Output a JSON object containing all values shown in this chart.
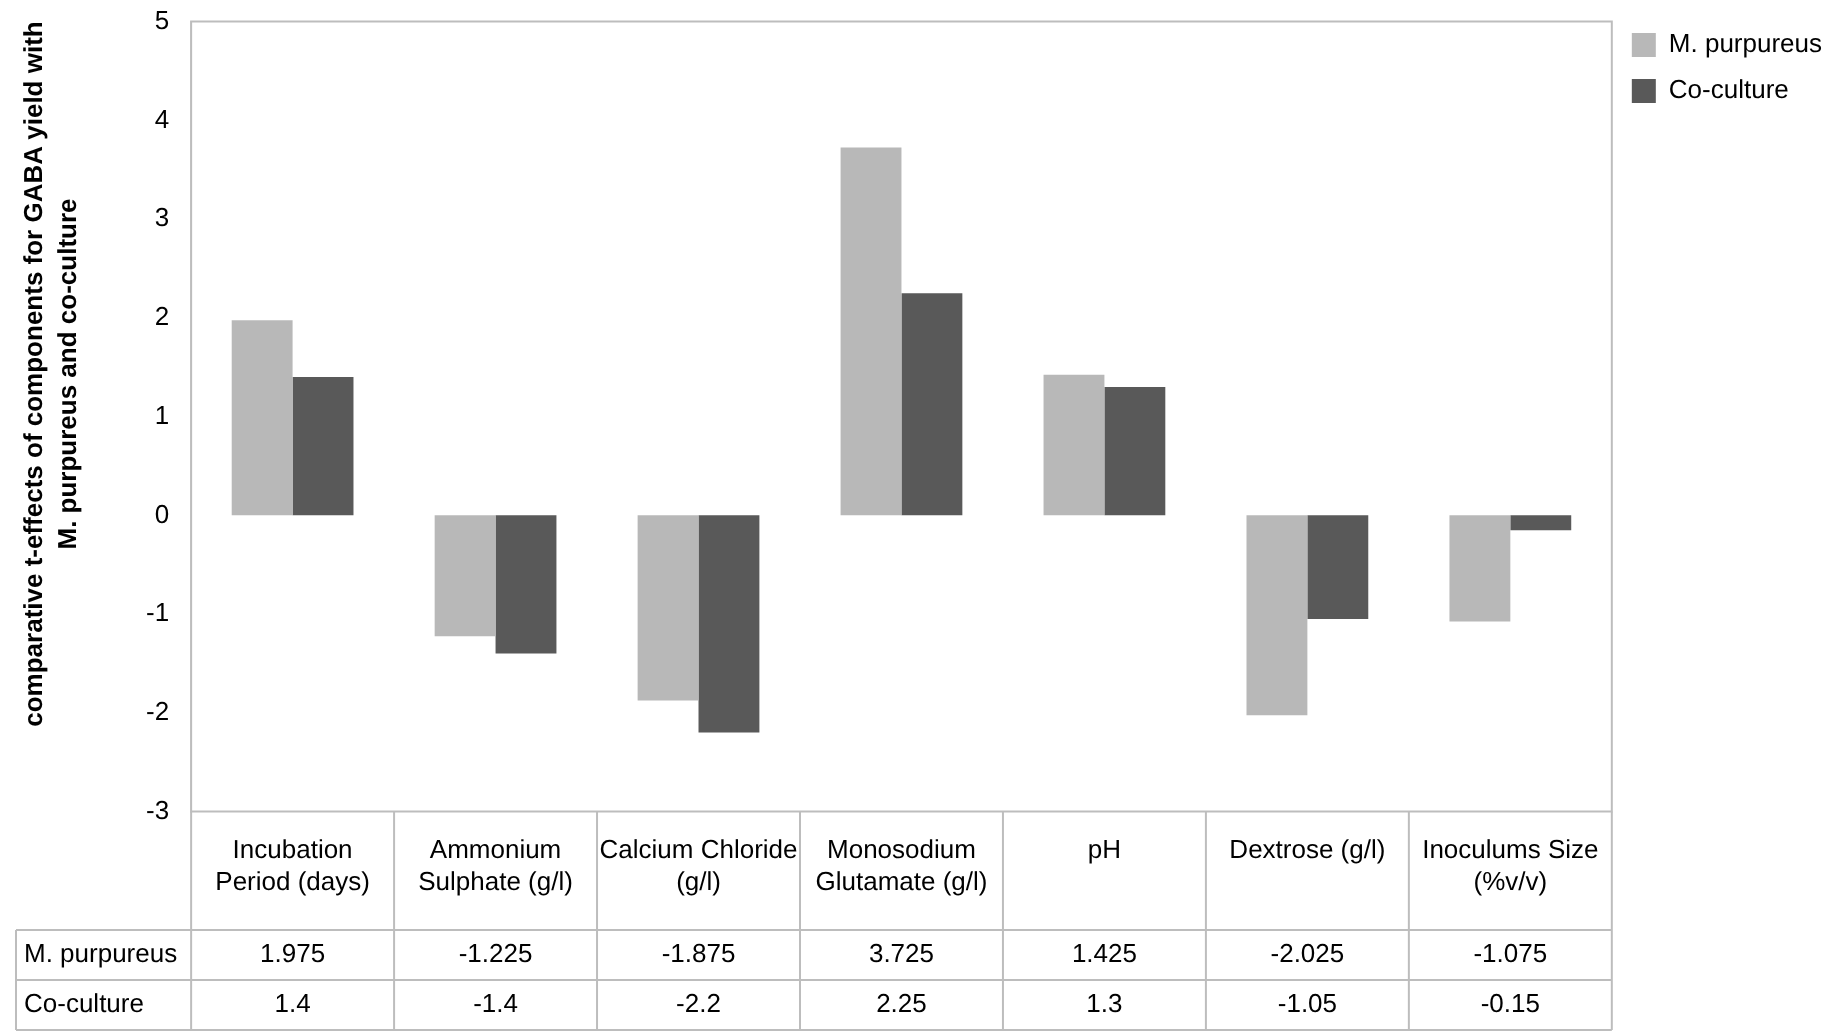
{
  "chart_data": {
    "type": "bar",
    "ylabel": "comparative t-effects of components for GABA yield with M. purpureus and co-culture",
    "categories": [
      "Incubation Period (days)",
      "Ammonium Sulphate (g/l)",
      "Calcium Chloride (g/l)",
      "Monosodium Glutamate (g/l)",
      "pH",
      "Dextrose (g/l)",
      "Inoculums Size (%v/v)"
    ],
    "series": [
      {
        "name": "M. purpureus",
        "color": "#b8b8b8",
        "values": [
          1.975,
          -1.225,
          -1.875,
          3.725,
          1.425,
          -2.025,
          -1.075
        ]
      },
      {
        "name": "Co-culture",
        "color": "#595959",
        "values": [
          1.4,
          -1.4,
          -2.2,
          2.25,
          1.3,
          -1.05,
          -0.15
        ]
      }
    ],
    "ylim": [
      -3,
      5
    ],
    "yticks": [
      -3,
      -2,
      -1,
      0,
      1,
      2,
      3,
      4,
      5
    ],
    "grid": false,
    "legend": "top right",
    "data_labels": true
  }
}
